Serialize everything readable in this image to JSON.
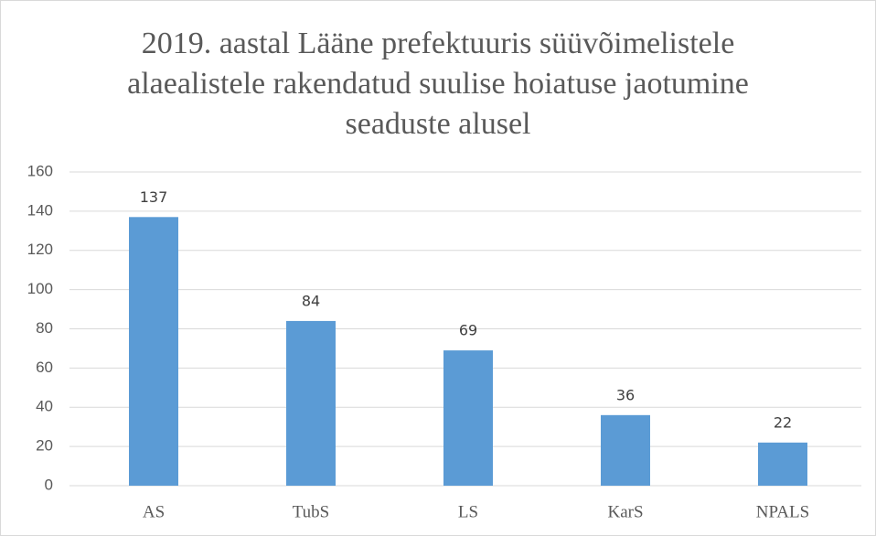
{
  "chart_data": {
    "type": "bar",
    "title": "2019. aastal Lääne prefektuuris süüvõimelistele alaealistele rakendatud suulise hoiatuse jaotumine seaduste alusel",
    "categories": [
      "AS",
      "TubS",
      "LS",
      "KarS",
      "NPALS"
    ],
    "values": [
      137,
      84,
      69,
      36,
      22
    ],
    "color": "#5b9bd5",
    "ylim": [
      0,
      160
    ],
    "yticks": [
      0,
      20,
      40,
      60,
      80,
      100,
      120,
      140,
      160
    ],
    "grid": true,
    "data_labels": true
  }
}
